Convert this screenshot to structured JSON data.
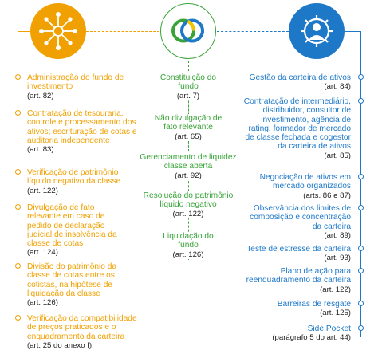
{
  "colors": {
    "orange": "#f0a000",
    "green": "#38a338",
    "blue": "#1e78c8"
  },
  "icons": {
    "left": "network-people-icon",
    "center": "interlocking-circles-icon",
    "right": "person-gear-icon"
  },
  "left_items": [
    {
      "title": "Administração do fundo de investimento",
      "ref": "(art. 82)"
    },
    {
      "title": "Contratação de tesouraria, controle e processamento dos ativos; escrituração de cotas e auditoria independente",
      "ref": "(art. 83)"
    },
    {
      "title": "Verificação de patrimônio líquido negativo da classe",
      "ref": "(art. 122)"
    },
    {
      "title": "Divulgação de fato relevante em caso de pedido de declaração judicial de insolvência da classe de cotas",
      "ref": "(art. 124)"
    },
    {
      "title": "Divisão do patrimônio da classe de cotas entre os cotistas, na hipótese de liquidação da classe",
      "ref": "(art. 126)"
    },
    {
      "title": "Verificação da compatibilidade de preços praticados e o enquadramento da carteira",
      "ref": "(art. 25 do anexo I)"
    }
  ],
  "center_items": [
    {
      "title": "Constituição do fundo",
      "ref": "(art. 7)"
    },
    {
      "title": "Não divulgação de fato relevante",
      "ref": "(art. 65)"
    },
    {
      "title": "Gerenciamento de liquidez classe aberta",
      "ref": "(art. 92)"
    },
    {
      "title": "Resolução do patrimônio líquido negativo",
      "ref": "(art. 122)"
    },
    {
      "title": "Liquidação do fundo",
      "ref": "(art. 126)"
    }
  ],
  "right_items": [
    {
      "title": "Gestão da carteira de ativos",
      "ref": "(art. 84)"
    },
    {
      "title": "Contratação de intermediário, distribuidor, consultor de investimento, agência de rating, formador de mercado de classe fechada e cogestor da carteira de ativos",
      "ref": "(art. 85)"
    },
    {
      "title": "Negociação de ativos em mercado organizados",
      "ref": "(arts. 86 e 87)"
    },
    {
      "title": "Observância dos limites de composição e concentração da carteira",
      "ref": "(art. 89)"
    },
    {
      "title": "Teste de estresse da carteira",
      "ref": "(art. 93)"
    },
    {
      "title": "Plano de ação para reenquadramento da carteira",
      "ref": "(art. 122)"
    },
    {
      "title": "Barreiras de resgate",
      "ref": "(art. 125)"
    },
    {
      "title": "Side Pocket",
      "ref": "(parágrafo 5 do art. 44)"
    }
  ]
}
